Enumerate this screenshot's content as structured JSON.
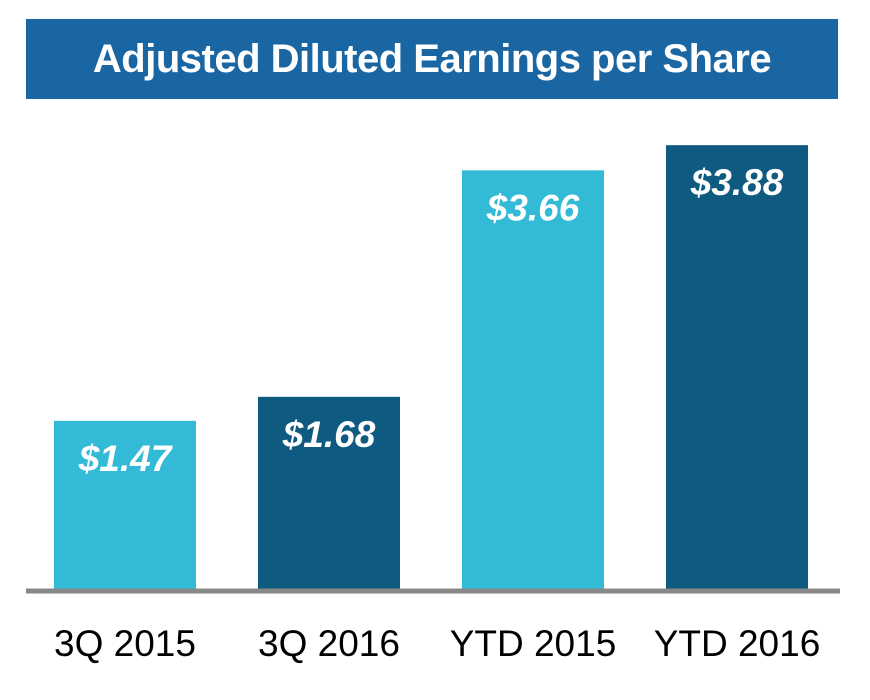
{
  "chart_data": {
    "type": "bar",
    "title": "Adjusted Diluted Earnings per Share",
    "categories": [
      "3Q 2015",
      "3Q 2016",
      "YTD 2015",
      "YTD 2016"
    ],
    "values": [
      1.47,
      1.68,
      3.66,
      3.88
    ],
    "data_labels": [
      "$1.47",
      "$1.68",
      "$3.66",
      "$3.88"
    ],
    "xlabel": "",
    "ylabel": "",
    "ylim": [
      0,
      4.1
    ],
    "grid": false,
    "legend": "none",
    "colors": {
      "bars": [
        "#33bad6",
        "#0e5a80",
        "#33bad6",
        "#0e5a80"
      ],
      "axis": "#888888",
      "title_background": "#1a66a3",
      "title_text": "#ffffff",
      "label_text": "#ffffff",
      "category_text": "#000000"
    }
  }
}
